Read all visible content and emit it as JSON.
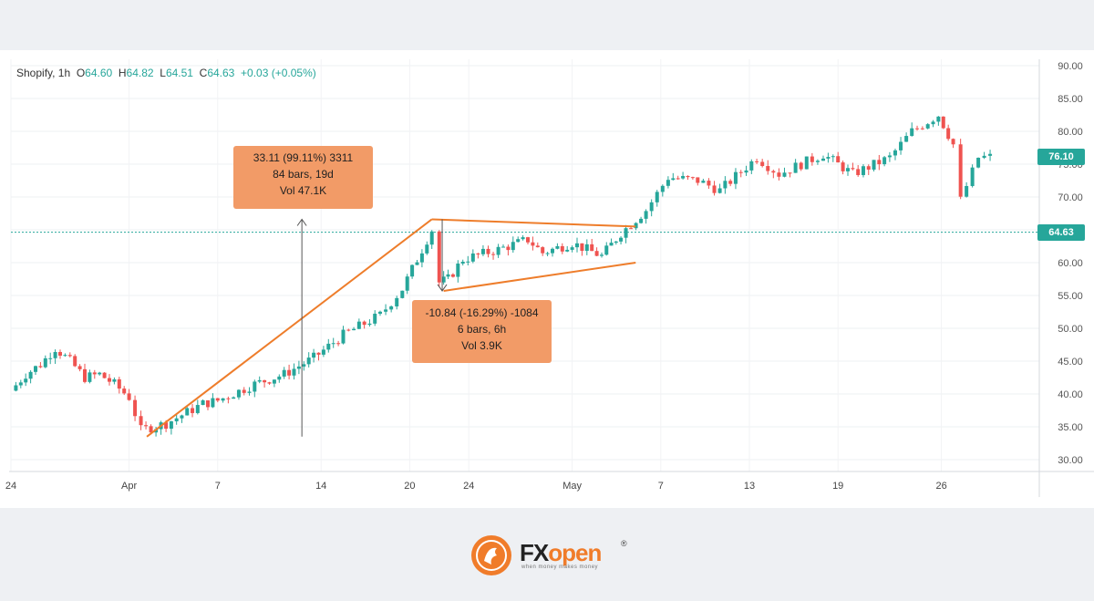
{
  "legend": {
    "symbol": "Shopify, 1h",
    "o_label": "O",
    "o_value": "64.60",
    "h_label": "H",
    "h_value": "64.82",
    "l_label": "L",
    "l_value": "64.51",
    "c_label": "C",
    "c_value": "64.63",
    "change": "+0.03 (+0.05%)"
  },
  "price_tags": {
    "last": "76.10",
    "current": "64.63"
  },
  "annotations": {
    "up": {
      "line1": "33.11 (99.11%) 3311",
      "line2": "84 bars, 19d",
      "line3": "Vol 47.1K"
    },
    "down": {
      "line1": "-10.84 (-16.29%) -1084",
      "line2": "6 bars, 6h",
      "line3": "Vol 3.9K"
    }
  },
  "footer": {
    "brand_fx": "FX",
    "brand_open": "open",
    "tagline": "when money makes money",
    "registered": "®"
  },
  "colors": {
    "up": "#26a69a",
    "down": "#ef5350",
    "pattern": "#ee7d2b",
    "callout": "#f29b67",
    "current_line": "#26a69a"
  },
  "chart_data": {
    "type": "candlestick",
    "title": "Shopify, 1h",
    "yticks": [
      "30.00",
      "35.00",
      "40.00",
      "45.00",
      "50.00",
      "55.00",
      "60.00",
      "65.00",
      "70.00",
      "75.00",
      "80.00",
      "85.00",
      "90.00"
    ],
    "ylim": [
      28,
      91
    ],
    "xticks": [
      {
        "label": "24",
        "day": 0
      },
      {
        "label": "Apr",
        "day": 8
      },
      {
        "label": "7",
        "day": 14
      },
      {
        "label": "14",
        "day": 21
      },
      {
        "label": "20",
        "day": 27
      },
      {
        "label": "24",
        "day": 31
      },
      {
        "label": "May",
        "day": 38
      },
      {
        "label": "7",
        "day": 44
      },
      {
        "label": "13",
        "day": 50
      },
      {
        "label": "19",
        "day": 56
      },
      {
        "label": "26",
        "day": 63
      }
    ],
    "xlim": [
      0,
      66.3
    ],
    "current_price": 64.63,
    "last_price": 76.1,
    "series": [
      {
        "day": 0.0,
        "close": 40.5
      },
      {
        "day": 1.0,
        "close": 43.0
      },
      {
        "day": 2.0,
        "close": 44.5
      },
      {
        "day": 3.0,
        "close": 47.0
      },
      {
        "day": 4.0,
        "close": 45.0
      },
      {
        "day": 5.0,
        "close": 42.5
      },
      {
        "day": 6.0,
        "close": 43.0
      },
      {
        "day": 7.0,
        "close": 41.5
      },
      {
        "day": 8.0,
        "close": 39.5
      },
      {
        "day": 8.8,
        "close": 34.5
      },
      {
        "day": 10.5,
        "close": 35.5
      },
      {
        "day": 13.0,
        "close": 38.5
      },
      {
        "day": 14.0,
        "close": 39.0
      },
      {
        "day": 16.5,
        "close": 41.5
      },
      {
        "day": 18.5,
        "close": 43.0
      },
      {
        "day": 20.5,
        "close": 45.5
      },
      {
        "day": 22.5,
        "close": 49.0
      },
      {
        "day": 25.0,
        "close": 52.0
      },
      {
        "day": 26.5,
        "close": 56.0
      },
      {
        "day": 28.5,
        "close": 65.0
      },
      {
        "day": 29.0,
        "close": 57.0
      },
      {
        "day": 29.6,
        "close": 57.5
      },
      {
        "day": 30.6,
        "close": 60.5
      },
      {
        "day": 33.0,
        "close": 62.0
      },
      {
        "day": 35.0,
        "close": 63.5
      },
      {
        "day": 36.0,
        "close": 61.5
      },
      {
        "day": 38.0,
        "close": 63.0
      },
      {
        "day": 40.0,
        "close": 61.0
      },
      {
        "day": 41.3,
        "close": 64.5
      },
      {
        "day": 43.0,
        "close": 68.0
      },
      {
        "day": 44.5,
        "close": 73.0
      },
      {
        "day": 46.5,
        "close": 72.5
      },
      {
        "day": 48.0,
        "close": 71.0
      },
      {
        "day": 50.5,
        "close": 76.0
      },
      {
        "day": 52.0,
        "close": 73.5
      },
      {
        "day": 55.0,
        "close": 76.5
      },
      {
        "day": 57.0,
        "close": 73.5
      },
      {
        "day": 59.5,
        "close": 76.0
      },
      {
        "day": 61.0,
        "close": 80.0
      },
      {
        "day": 62.8,
        "close": 82.5
      },
      {
        "day": 63.8,
        "close": 78.0
      },
      {
        "day": 64.3,
        "close": 69.5
      },
      {
        "day": 65.5,
        "close": 76.0
      },
      {
        "day": 66.3,
        "close": 76.1
      }
    ],
    "pattern_lines": [
      {
        "from": {
          "day": 9.2,
          "price": 33.5
        },
        "to": {
          "day": 28.5,
          "price": 66.6
        }
      },
      {
        "from": {
          "day": 28.5,
          "price": 66.6
        },
        "to": {
          "day": 42.3,
          "price": 65.5
        }
      },
      {
        "from": {
          "day": 29.3,
          "price": 55.7
        },
        "to": {
          "day": 42.3,
          "price": 60.0
        }
      }
    ],
    "measure_arrows": [
      {
        "day": 19.7,
        "from": 33.5,
        "to": 66.6
      },
      {
        "day": 29.2,
        "from": 66.6,
        "to": 55.7
      }
    ]
  }
}
